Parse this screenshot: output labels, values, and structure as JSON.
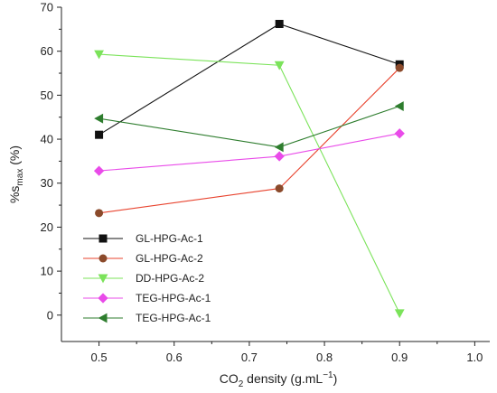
{
  "chart_data": {
    "type": "line",
    "title": "",
    "xlabel": {
      "main": "CO",
      "sub": "2",
      "rest": " density (g.mL",
      "sup": "−1",
      "end": ")"
    },
    "ylabel": {
      "main": "%s",
      "sub": "max",
      "rest": " (%)"
    },
    "xlim": [
      0.45,
      1.02
    ],
    "ylim": [
      -6,
      70
    ],
    "x_ticks": [
      "0.5",
      "0.6",
      "0.7",
      "0.8",
      "0.9",
      "1.0"
    ],
    "y_ticks": [
      "0",
      "10",
      "20",
      "30",
      "40",
      "50",
      "60",
      "70"
    ],
    "legend_position": "bottom-left",
    "series": [
      {
        "name": "GL-HPG-Ac-1",
        "color": "#111111",
        "marker": "square",
        "x": [
          0.5,
          0.74,
          0.9
        ],
        "y": [
          41,
          66.2,
          57
        ]
      },
      {
        "name": "GL-HPG-Ac-2",
        "color": "#e8432e",
        "line_color": "#e8432e",
        "marker_color": "#8b4a2b",
        "marker": "circle",
        "x": [
          0.5,
          0.74,
          0.9
        ],
        "y": [
          23.2,
          28.8,
          56.2
        ]
      },
      {
        "name": "DD-HPG-Ac-2",
        "color": "#7be35a",
        "marker": "triangle-down",
        "x": [
          0.5,
          0.74,
          0.9
        ],
        "y": [
          59.3,
          56.8,
          0.4
        ]
      },
      {
        "name": "TEG-HPG-Ac-1",
        "color": "#e94be9",
        "marker": "diamond",
        "x": [
          0.5,
          0.74,
          0.9
        ],
        "y": [
          32.8,
          36.1,
          41.3
        ]
      },
      {
        "name": "TEG-HPG-Ac-1",
        "color": "#2e7d2e",
        "marker": "triangle-left",
        "x": [
          0.5,
          0.74,
          0.9
        ],
        "y": [
          44.7,
          38.2,
          47.5
        ]
      }
    ]
  }
}
